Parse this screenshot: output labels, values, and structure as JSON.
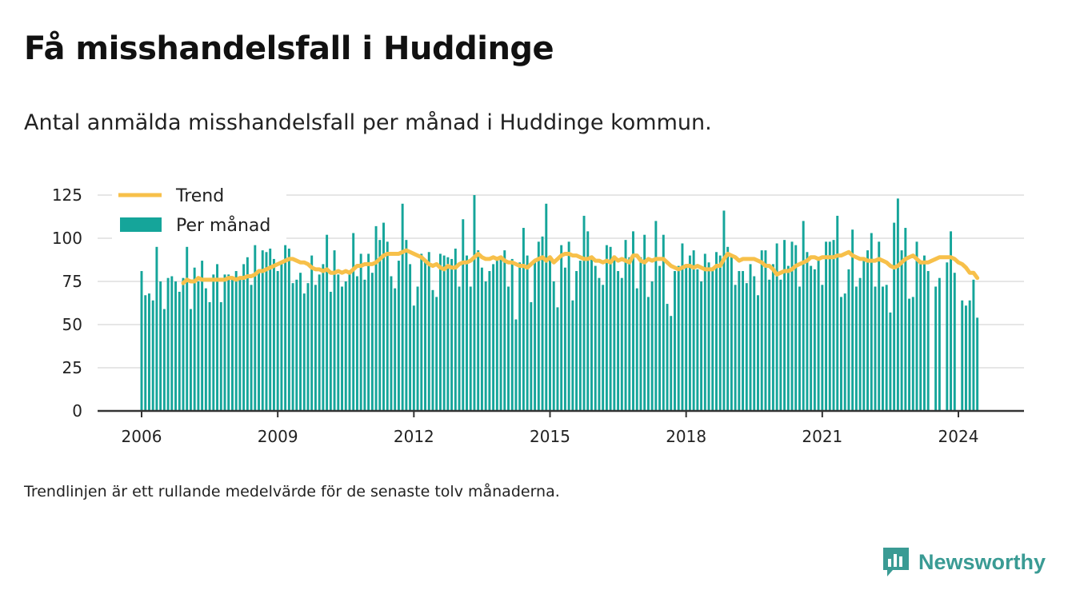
{
  "header": {
    "title": "Få misshandelsfall i Huddinge",
    "subtitle": "Antal anmälda misshandelsfall per månad i Huddinge kommun."
  },
  "footnote": "Trendlinjen är ett rullande medelvärde för de senaste tolv månaderna.",
  "brand": {
    "name": "Newsworthy",
    "icon": "newsworthy-logo-icon",
    "color": "#3a9b94"
  },
  "colors": {
    "bars": "#15a59a",
    "trend": "#f7c04a",
    "grid": "#dddddd",
    "axis": "#333333"
  },
  "chart_data": {
    "type": "bar",
    "start": "2006-01",
    "x_ticks": [
      "2006",
      "2009",
      "2012",
      "2015",
      "2018",
      "2021",
      "2024"
    ],
    "y_ticks": [
      0,
      25,
      50,
      75,
      100,
      125
    ],
    "ylim": [
      0,
      125
    ],
    "legend_position": "top-left",
    "grid": true,
    "series": [
      {
        "name": "Per månad",
        "type": "bar",
        "values": [
          81,
          67,
          68,
          64,
          95,
          75,
          59,
          77,
          78,
          75,
          69,
          77,
          95,
          59,
          83,
          75,
          87,
          71,
          63,
          79,
          85,
          63,
          79,
          79,
          78,
          81,
          77,
          85,
          89,
          73,
          96,
          80,
          93,
          92,
          94,
          88,
          81,
          85,
          96,
          94,
          74,
          76,
          80,
          68,
          74,
          90,
          73,
          79,
          85,
          102,
          69,
          93,
          79,
          72,
          75,
          80,
          103,
          78,
          91,
          76,
          91,
          80,
          107,
          99,
          109,
          98,
          78,
          71,
          87,
          120,
          99,
          85,
          61,
          72,
          91,
          88,
          92,
          70,
          66,
          91,
          90,
          89,
          88,
          94,
          72,
          111,
          90,
          72,
          125,
          93,
          83,
          75,
          81,
          85,
          87,
          89,
          93,
          72,
          88,
          53,
          86,
          106,
          90,
          63,
          87,
          98,
          101,
          120,
          90,
          75,
          60,
          96,
          83,
          98,
          64,
          81,
          87,
          113,
          104,
          90,
          84,
          77,
          73,
          96,
          95,
          90,
          81,
          77,
          99,
          89,
          104,
          71,
          89,
          102,
          66,
          75,
          110,
          84,
          102,
          62,
          55,
          81,
          84,
          97,
          85,
          90,
          93,
          82,
          75,
          91,
          86,
          82,
          92,
          90,
          116,
          95,
          89,
          73,
          81,
          81,
          74,
          85,
          78,
          67,
          93,
          93,
          76,
          85,
          97,
          76,
          99,
          84,
          98,
          96,
          72,
          110,
          92,
          84,
          82,
          89,
          73,
          98,
          98,
          99,
          113,
          66,
          68,
          82,
          105,
          72,
          77,
          88,
          93,
          103,
          72,
          98,
          72,
          73,
          57,
          109,
          123,
          93,
          106,
          65,
          66,
          98,
          87,
          90,
          81,
          0,
          72,
          77,
          0,
          86,
          104,
          80,
          0,
          64,
          61,
          64,
          76,
          54
        ]
      },
      {
        "name": "Trend",
        "type": "line",
        "values": [
          null,
          null,
          null,
          null,
          null,
          null,
          null,
          null,
          null,
          null,
          null,
          74,
          76,
          75,
          75,
          77,
          76,
          76,
          76,
          76,
          76,
          76,
          76,
          77,
          77,
          76,
          77,
          77,
          78,
          78,
          79,
          81,
          81,
          82,
          83,
          84,
          85,
          86,
          87,
          88,
          88,
          87,
          86,
          86,
          85,
          83,
          82,
          82,
          81,
          82,
          80,
          80,
          81,
          80,
          81,
          80,
          82,
          84,
          84,
          85,
          85,
          85,
          86,
          88,
          90,
          91,
          91,
          91,
          91,
          92,
          93,
          92,
          91,
          90,
          89,
          87,
          85,
          84,
          85,
          83,
          82,
          84,
          83,
          83,
          85,
          86,
          86,
          87,
          89,
          91,
          89,
          88,
          88,
          89,
          88,
          89,
          87,
          86,
          86,
          85,
          84,
          84,
          83,
          85,
          87,
          88,
          89,
          87,
          89,
          86,
          88,
          90,
          91,
          91,
          90,
          90,
          89,
          88,
          88,
          89,
          87,
          87,
          86,
          87,
          86,
          89,
          87,
          88,
          87,
          86,
          90,
          90,
          87,
          86,
          88,
          87,
          88,
          88,
          88,
          86,
          84,
          83,
          82,
          83,
          84,
          84,
          83,
          84,
          83,
          82,
          82,
          82,
          84,
          84,
          88,
          91,
          90,
          89,
          87,
          88,
          88,
          88,
          88,
          87,
          86,
          84,
          84,
          82,
          79,
          80,
          81,
          81,
          82,
          84,
          85,
          86,
          87,
          89,
          89,
          88,
          89,
          89,
          89,
          89,
          90,
          90,
          91,
          92,
          90,
          89,
          88,
          88,
          87,
          87,
          87,
          88,
          87,
          86,
          84,
          83,
          84,
          86,
          88,
          89,
          90,
          88,
          86,
          86,
          86,
          87,
          88,
          89,
          89,
          89,
          89,
          88,
          86,
          85,
          83,
          80,
          80,
          77
        ]
      }
    ]
  }
}
